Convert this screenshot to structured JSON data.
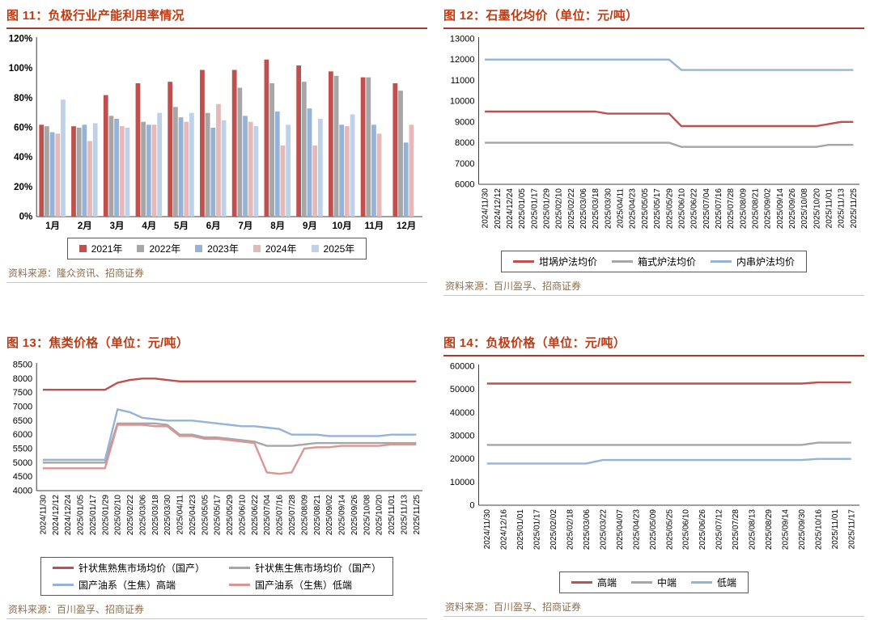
{
  "colors": {
    "title": "#c13a12",
    "title_rule": "#a83b2a",
    "source_text": "#8b6f50",
    "axis": "#3f3f3f",
    "divider": "#cacaca"
  },
  "chart_data": [
    {
      "figure_id": "图 11",
      "title": "图 11：负极行业产能利用率情况",
      "source": "资料来源：隆众资讯、招商证券",
      "type": "bar",
      "grid": false,
      "legend_position": "bottom",
      "axis_bold": true,
      "rotate_x_labels": false,
      "ylim": [
        0,
        120
      ],
      "ytick": 20,
      "y_format": "percent",
      "categories": [
        "1月",
        "2月",
        "3月",
        "4月",
        "5月",
        "6月",
        "7月",
        "8月",
        "9月",
        "10月",
        "11月",
        "12月"
      ],
      "series": [
        {
          "name": "2021年",
          "color": "#C0504D",
          "values": [
            62,
            61,
            82,
            90,
            91,
            99,
            99,
            106,
            102,
            98,
            94,
            90
          ]
        },
        {
          "name": "2022年",
          "color": "#A6A6A6",
          "values": [
            61,
            60,
            68,
            64,
            74,
            70,
            87,
            90,
            91,
            95,
            94,
            85
          ]
        },
        {
          "name": "2023年",
          "color": "#95B3D7",
          "values": [
            57,
            62,
            66,
            62,
            67,
            60,
            68,
            71,
            73,
            62,
            62,
            50
          ]
        },
        {
          "name": "2024年",
          "color": "#E6B9B8",
          "values": [
            56,
            51,
            61,
            62,
            64,
            76,
            64,
            48,
            48,
            61,
            56,
            62
          ]
        },
        {
          "name": "2025年",
          "color": "#BDD2E9",
          "values": [
            79,
            63,
            60,
            70,
            70,
            65,
            61,
            62,
            66,
            69,
            null,
            null
          ]
        }
      ]
    },
    {
      "figure_id": "图 12",
      "title": "图 12：石墨化均价（单位：元/吨）",
      "source": "资料来源：百川盈孚、招商证券",
      "type": "line",
      "grid": false,
      "legend_position": "bottom",
      "axis_bold": false,
      "rotate_x_labels": true,
      "x_label_space": 80,
      "ylim": [
        6000,
        13000
      ],
      "ytick": 1000,
      "y_format": "number",
      "categories": [
        "2024/11/30",
        "2024/12/12",
        "2024/12/24",
        "2025/01/05",
        "2025/01/17",
        "2025/01/29",
        "2025/02/10",
        "2025/02/22",
        "2025/03/06",
        "2025/03/18",
        "2025/03/30",
        "2025/04/11",
        "2025/04/23",
        "2025/05/05",
        "2025/05/17",
        "2025/05/29",
        "2025/06/10",
        "2025/06/22",
        "2025/07/04",
        "2025/07/16",
        "2025/07/28",
        "2025/08/09",
        "2025/08/21",
        "2025/09/02",
        "2025/09/14",
        "2025/09/26",
        "2025/10/08",
        "2025/10/20",
        "2025/11/01",
        "2025/11/13",
        "2025/11/25"
      ],
      "series": [
        {
          "name": "坩埚炉法均价",
          "color": "#C0504D",
          "values": [
            9500,
            9500,
            9500,
            9500,
            9500,
            9500,
            9500,
            9500,
            9500,
            9500,
            9400,
            9400,
            9400,
            9400,
            9400,
            9400,
            8800,
            8800,
            8800,
            8800,
            8800,
            8800,
            8800,
            8800,
            8800,
            8800,
            8800,
            8800,
            8900,
            9000,
            9000
          ]
        },
        {
          "name": "箱式炉法均价",
          "color": "#A6A6A6",
          "values": [
            8000,
            8000,
            8000,
            8000,
            8000,
            8000,
            8000,
            8000,
            8000,
            8000,
            8000,
            8000,
            8000,
            8000,
            8000,
            8000,
            7800,
            7800,
            7800,
            7800,
            7800,
            7800,
            7800,
            7800,
            7800,
            7800,
            7800,
            7800,
            7900,
            7900,
            7900
          ]
        },
        {
          "name": "内串炉法均价",
          "color": "#95B3D7",
          "values": [
            12000,
            12000,
            12000,
            12000,
            12000,
            12000,
            12000,
            12000,
            12000,
            12000,
            12000,
            12000,
            12000,
            12000,
            12000,
            12000,
            11500,
            11500,
            11500,
            11500,
            11500,
            11500,
            11500,
            11500,
            11500,
            11500,
            11500,
            11500,
            11500,
            11500,
            11500
          ]
        }
      ]
    },
    {
      "figure_id": "图 13",
      "title": "图 13：焦类价格（单位：元/吨）",
      "source": "资料来源：百川盈孚、招商证券",
      "type": "line",
      "grid": false,
      "legend_position": "bottom",
      "legend_columns": 2,
      "axis_bold": false,
      "rotate_x_labels": true,
      "x_label_space": 80,
      "ylim": [
        4000,
        8500
      ],
      "ytick": 500,
      "y_format": "number",
      "categories": [
        "2024/11/30",
        "2024/12/12",
        "2024/12/24",
        "2025/01/05",
        "2025/01/17",
        "2025/01/29",
        "2025/02/10",
        "2025/02/22",
        "2025/03/06",
        "2025/03/18",
        "2025/03/30",
        "2025/04/11",
        "2025/04/23",
        "2025/05/05",
        "2025/05/17",
        "2025/05/29",
        "2025/06/10",
        "2025/06/22",
        "2025/07/04",
        "2025/07/16",
        "2025/07/28",
        "2025/08/09",
        "2025/08/21",
        "2025/09/02",
        "2025/09/14",
        "2025/09/26",
        "2025/10/08",
        "2025/10/20",
        "2025/11/01",
        "2025/11/13",
        "2025/11/25"
      ],
      "series": [
        {
          "name": "针状焦熟焦市场均价（国产）",
          "color": "#C0504D",
          "values": [
            7600,
            7600,
            7600,
            7600,
            7600,
            7600,
            7850,
            7950,
            8000,
            8000,
            7950,
            7900,
            7900,
            7900,
            7900,
            7900,
            7900,
            7900,
            7900,
            7900,
            7900,
            7900,
            7900,
            7900,
            7900,
            7900,
            7900,
            7900,
            7900,
            7900,
            7900
          ]
        },
        {
          "name": "针状焦生焦市场均价（国产）",
          "color": "#A6A6A6",
          "values": [
            5000,
            5000,
            5000,
            5000,
            5000,
            5000,
            6400,
            6400,
            6400,
            6400,
            6350,
            6000,
            6000,
            5900,
            5900,
            5850,
            5800,
            5750,
            5600,
            5600,
            5600,
            5650,
            5700,
            5700,
            5700,
            5700,
            5700,
            5700,
            5700,
            5700,
            5700
          ]
        },
        {
          "name": "国产油系（生焦）高端",
          "color": "#95B3D7",
          "values": [
            5100,
            5100,
            5100,
            5100,
            5100,
            5100,
            6900,
            6800,
            6600,
            6550,
            6500,
            6500,
            6500,
            6450,
            6400,
            6350,
            6300,
            6300,
            6250,
            6200,
            6000,
            6000,
            6000,
            5950,
            5950,
            5950,
            5950,
            5950,
            6000,
            6000,
            6000
          ]
        },
        {
          "name": "国产油系（生焦）低端",
          "color": "#D99694",
          "values": [
            4800,
            4800,
            4800,
            4800,
            4800,
            4800,
            6350,
            6350,
            6350,
            6300,
            6300,
            5950,
            5950,
            5850,
            5850,
            5800,
            5750,
            5700,
            4650,
            4600,
            4650,
            5500,
            5550,
            5550,
            5600,
            5600,
            5600,
            5600,
            5650,
            5650,
            5650
          ]
        }
      ]
    },
    {
      "figure_id": "图 14",
      "title": "图 14：负极价格（单位：元/吨）",
      "source": "资料来源：百川盈孚、招商证券",
      "type": "line",
      "grid": false,
      "legend_position": "bottom",
      "axis_bold": false,
      "rotate_x_labels": true,
      "x_label_space": 80,
      "ylim": [
        0,
        60000
      ],
      "ytick": 10000,
      "y_format": "number",
      "categories": [
        "2024/11/30",
        "2024/12/16",
        "2025/01/01",
        "2025/01/17",
        "2025/02/02",
        "2025/02/18",
        "2025/03/06",
        "2025/03/22",
        "2025/04/07",
        "2025/04/23",
        "2025/05/09",
        "2025/05/25",
        "2025/06/10",
        "2025/06/26",
        "2025/07/12",
        "2025/07/28",
        "2025/08/13",
        "2025/08/29",
        "2025/09/14",
        "2025/09/30",
        "2025/10/16",
        "2025/11/01",
        "2025/11/17"
      ],
      "series": [
        {
          "name": "高端",
          "color": "#C0504D",
          "values": [
            52500,
            52500,
            52500,
            52500,
            52500,
            52500,
            52500,
            52500,
            52500,
            52500,
            52500,
            52500,
            52500,
            52500,
            52500,
            52500,
            52500,
            52500,
            52500,
            52500,
            53000,
            53000,
            53000
          ]
        },
        {
          "name": "中端",
          "color": "#A6A6A6",
          "values": [
            26000,
            26000,
            26000,
            26000,
            26000,
            26000,
            26000,
            26000,
            26000,
            26000,
            26000,
            26000,
            26000,
            26000,
            26000,
            26000,
            26000,
            26000,
            26000,
            26000,
            27000,
            27000,
            27000
          ]
        },
        {
          "name": "低端",
          "color": "#95B3D7",
          "values": [
            18000,
            18000,
            18000,
            18000,
            18000,
            18000,
            18000,
            19500,
            19500,
            19500,
            19500,
            19500,
            19500,
            19500,
            19500,
            19500,
            19500,
            19500,
            19500,
            19500,
            20000,
            20000,
            20000
          ]
        }
      ]
    }
  ]
}
